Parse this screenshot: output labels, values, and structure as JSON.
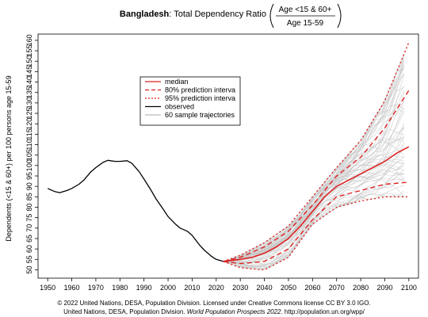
{
  "chart_data": {
    "type": "line",
    "title": {
      "country": "Bangladesh",
      "text": ": Total Dependency Ratio",
      "numerator": "Age <15 & 60+",
      "denominator": "Age 15-59"
    },
    "ylabel": "Dependents (<15 & 60+) per 100 persons age 15-59",
    "xlim": [
      1946,
      2104
    ],
    "ylim": [
      46,
      163
    ],
    "x_ticks": [
      1950,
      1960,
      1970,
      1980,
      1990,
      2000,
      2010,
      2020,
      2030,
      2040,
      2050,
      2060,
      2070,
      2080,
      2090,
      2100
    ],
    "y_ticks": [
      50,
      55,
      60,
      65,
      70,
      75,
      80,
      85,
      90,
      95,
      100,
      105,
      110,
      115,
      120,
      125,
      130,
      135,
      140,
      145,
      150,
      155,
      160
    ],
    "grid": false,
    "legend_position": "upper-left",
    "legend": [
      {
        "label": "median",
        "color": "#dd2222",
        "style": "solid"
      },
      {
        "label": "80% prediction interva",
        "color": "#dd2222",
        "style": "dashed"
      },
      {
        "label": "95% prediction interva",
        "color": "#dd2222",
        "style": "dotted"
      },
      {
        "label": "observed",
        "color": "#000000",
        "style": "solid"
      },
      {
        "label": "60 sample trajectories",
        "color": "#bbbbbb",
        "style": "solid"
      }
    ],
    "series": [
      {
        "name": "observed",
        "color": "#000000",
        "x": [
          1950,
          1953,
          1955,
          1958,
          1960,
          1963,
          1965,
          1968,
          1970,
          1973,
          1975,
          1978,
          1980,
          1983,
          1985,
          1988,
          1990,
          1993,
          1995,
          1998,
          2000,
          2003,
          2005,
          2008,
          2010,
          2013,
          2015,
          2018,
          2020,
          2023
        ],
        "y": [
          89,
          87.5,
          87,
          88,
          89,
          91,
          93,
          97,
          99,
          101.5,
          102.5,
          102,
          102,
          102.3,
          101,
          97,
          93.5,
          88,
          84,
          79,
          75.5,
          72,
          70,
          68.5,
          66.5,
          62,
          59.5,
          56.5,
          55,
          54
        ]
      },
      {
        "name": "median",
        "color": "#dd2222",
        "x": [
          2023,
          2030,
          2035,
          2040,
          2045,
          2050,
          2055,
          2060,
          2065,
          2070,
          2075,
          2080,
          2085,
          2090,
          2095,
          2100
        ],
        "y": [
          54,
          55,
          56,
          58,
          61,
          65,
          71,
          78,
          85,
          90,
          93,
          96,
          99,
          102,
          106,
          109
        ]
      },
      {
        "name": "80% prediction interval upper",
        "color": "#dd2222",
        "x": [
          2023,
          2030,
          2040,
          2050,
          2060,
          2070,
          2080,
          2090,
          2100
        ],
        "y": [
          54,
          56,
          61,
          68.5,
          81,
          95,
          104,
          118,
          136
        ]
      },
      {
        "name": "80% prediction interval lower",
        "color": "#dd2222",
        "x": [
          2023,
          2030,
          2040,
          2050,
          2060,
          2070,
          2080,
          2090,
          2100
        ],
        "y": [
          54,
          53,
          54,
          60,
          74,
          85,
          88,
          91,
          92
        ]
      },
      {
        "name": "95% prediction interval upper",
        "color": "#dd2222",
        "x": [
          2023,
          2030,
          2040,
          2050,
          2060,
          2070,
          2080,
          2090,
          2100
        ],
        "y": [
          54,
          57,
          63,
          71,
          85,
          99,
          112,
          131,
          159
        ]
      },
      {
        "name": "95% prediction interval lower",
        "color": "#dd2222",
        "x": [
          2023,
          2030,
          2040,
          2050,
          2060,
          2070,
          2080,
          2090,
          2100
        ],
        "y": [
          54,
          51,
          50,
          56,
          72,
          80,
          83,
          85,
          85
        ]
      }
    ],
    "sample_trajectories_count": 60
  },
  "footer": {
    "line1": "© 2022 United Nations, DESA, Population Division. Licensed under Creative Commons license CC BY 3.0 IGO.",
    "line2_prefix": "United Nations, DESA, Population Division. ",
    "line2_italic": "World Population Prospects 2022",
    "line2_suffix": ". http://population.un.org/wpp/"
  }
}
